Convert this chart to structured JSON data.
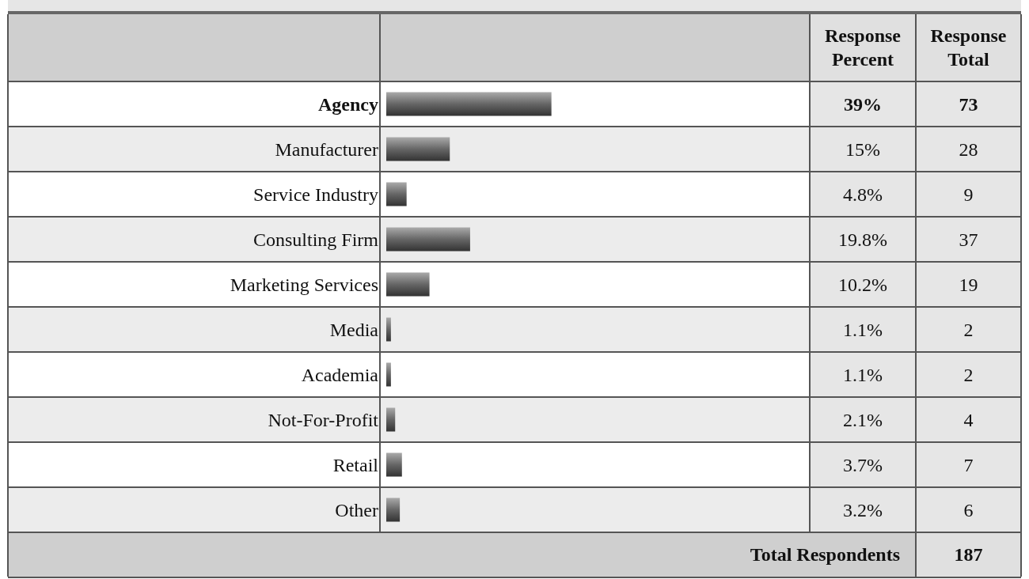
{
  "chart_data": {
    "type": "bar",
    "orientation": "horizontal",
    "categories": [
      "Agency",
      "Manufacturer",
      "Service Industry",
      "Consulting Firm",
      "Marketing Services",
      "Media",
      "Academia",
      "Not-For-Profit",
      "Retail",
      "Other"
    ],
    "series": [
      {
        "name": "Response Percent",
        "color": "#666666",
        "values": [
          39,
          15,
          4.8,
          19.8,
          10.2,
          1.1,
          1.1,
          2.1,
          3.7,
          3.2
        ],
        "value_labels": [
          "39%",
          "15%",
          "4.8%",
          "19.8%",
          "10.2%",
          "1.1%",
          "1.1%",
          "2.1%",
          "3.7%",
          "3.2%"
        ]
      }
    ],
    "xlim": [
      0,
      100
    ],
    "data_labels": true,
    "legend": false,
    "tick_labels": "y",
    "annotations": [
      "Response Total",
      "73",
      "28",
      "9",
      "37",
      "19",
      "2",
      "2",
      "4",
      "7",
      "6",
      "Total Respondents",
      "187"
    ]
  }
}
